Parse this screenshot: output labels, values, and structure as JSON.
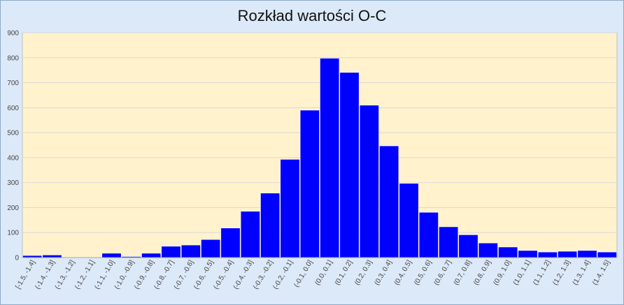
{
  "chart_data": {
    "type": "bar",
    "title": "Rozkład wartości O-C",
    "xlabel": "",
    "ylabel": "",
    "ylim": [
      0,
      900
    ],
    "yticks": [
      0,
      100,
      200,
      300,
      400,
      500,
      600,
      700,
      800,
      900
    ],
    "grid": true,
    "legend": "none",
    "colors": {
      "bar": "#0000ff",
      "plot_bg": "#fff2cc",
      "page_bg": "#dce9f8",
      "grid": "#d9d9d9"
    },
    "categories": [
      "[-1.5, -1.4]",
      "(-1.4, -1.3]",
      "(-1.3, -1.2]",
      "(-1.2, -1.1]",
      "(-1.1, -1.0]",
      "(-1.0, -0.9]",
      "(-0.9, -0.8]",
      "(-0.8, -0.7]",
      "(-0.7, -0.6]",
      "(-0.6, -0.5]",
      "(-0.5, -0.4]",
      "(-0.4, -0.3]",
      "(-0.3, -0.2]",
      "(-0.2, -0.1]",
      "(-0.1, 0.0]",
      "(0.0, 0.1]",
      "(0.1, 0.2]",
      "(0.2, 0.3]",
      "(0.3, 0.4]",
      "(0.4, 0.5]",
      "(0.5, 0.6]",
      "(0.6, 0.7]",
      "(0.7, 0.8]",
      "(0.8, 0.9]",
      "(0.9, 1.0]",
      "(1.0, 1.1]",
      "(1.1, 1.2]",
      "(1.2, 1.3]",
      "(1.3, 1.4]",
      "(1.4, 1.5]"
    ],
    "values": [
      8,
      10,
      0,
      0,
      17,
      4,
      17,
      45,
      50,
      72,
      118,
      185,
      258,
      393,
      590,
      798,
      741,
      610,
      447,
      297,
      181,
      123,
      91,
      58,
      42,
      28,
      22,
      25,
      28,
      22
    ]
  }
}
